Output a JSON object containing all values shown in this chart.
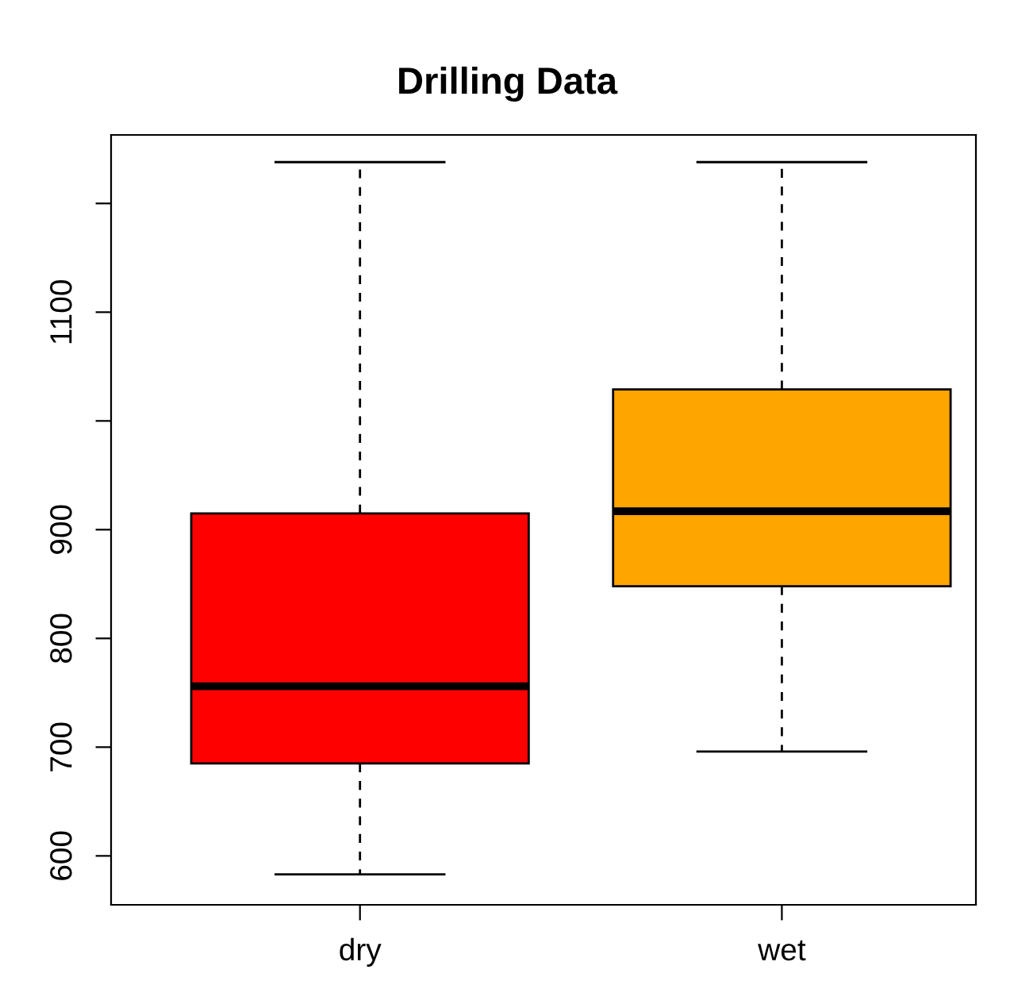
{
  "chart_data": {
    "type": "box",
    "title": "Drilling Data",
    "categories": [
      "dry",
      "wet"
    ],
    "boxes": [
      {
        "low": 583,
        "q1": 685,
        "median": 756,
        "q3": 915,
        "high": 1238
      },
      {
        "low": 696,
        "q1": 848,
        "median": 917,
        "q3": 1029,
        "high": 1238
      }
    ],
    "colors": [
      "#ff0000",
      "#ffa500"
    ],
    "ylim": [
      555,
      1263
    ],
    "yticks": [
      600,
      700,
      800,
      900,
      {
        "value": 1000,
        "label": null
      },
      1100,
      {
        "value": 1200,
        "label": null
      }
    ],
    "grid": false
  }
}
